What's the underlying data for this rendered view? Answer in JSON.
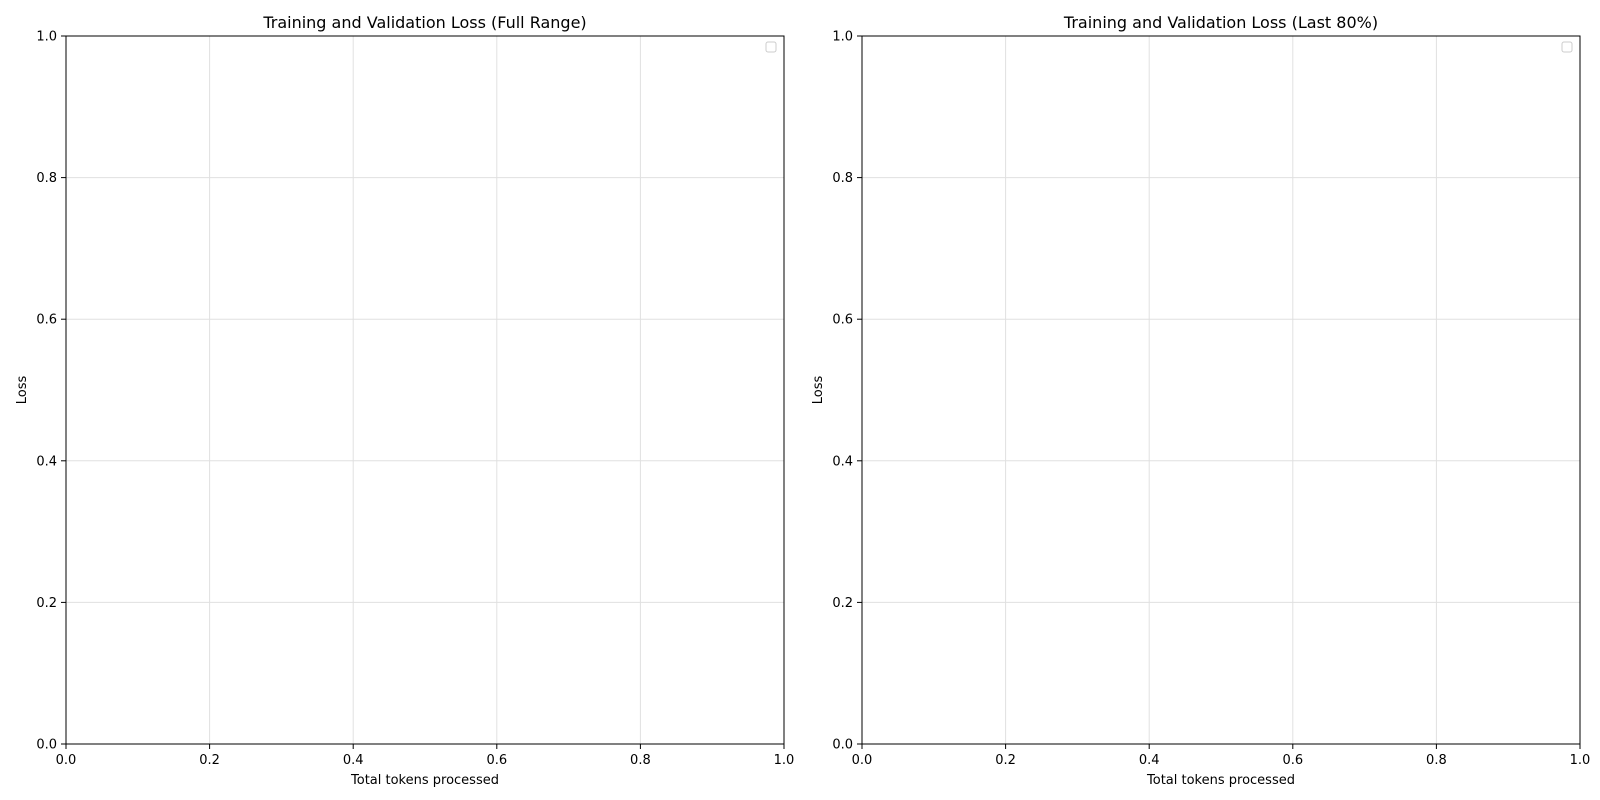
{
  "chart_data": [
    {
      "type": "line",
      "title": "Training and Validation Loss (Full Range)",
      "xlabel": "Total tokens processed",
      "ylabel": "Loss",
      "xlim": [
        0.0,
        1.0
      ],
      "ylim": [
        0.0,
        1.0
      ],
      "xticks": [
        "0.0",
        "0.2",
        "0.4",
        "0.6",
        "0.8",
        "1.0"
      ],
      "yticks": [
        "0.0",
        "0.2",
        "0.4",
        "0.6",
        "0.8",
        "1.0"
      ],
      "series": [],
      "grid": true,
      "legend": "top-right (empty)"
    },
    {
      "type": "line",
      "title": "Training and Validation Loss (Last 80%)",
      "xlabel": "Total tokens processed",
      "ylabel": "Loss",
      "xlim": [
        0.0,
        1.0
      ],
      "ylim": [
        0.0,
        1.0
      ],
      "xticks": [
        "0.0",
        "0.2",
        "0.4",
        "0.6",
        "0.8",
        "1.0"
      ],
      "yticks": [
        "0.0",
        "0.2",
        "0.4",
        "0.6",
        "0.8",
        "1.0"
      ],
      "series": [],
      "grid": true,
      "legend": "top-right (empty)"
    }
  ],
  "colors": {
    "grid": "#e0e0e0",
    "axes": "#000000",
    "legend_border": "#cccccc"
  }
}
